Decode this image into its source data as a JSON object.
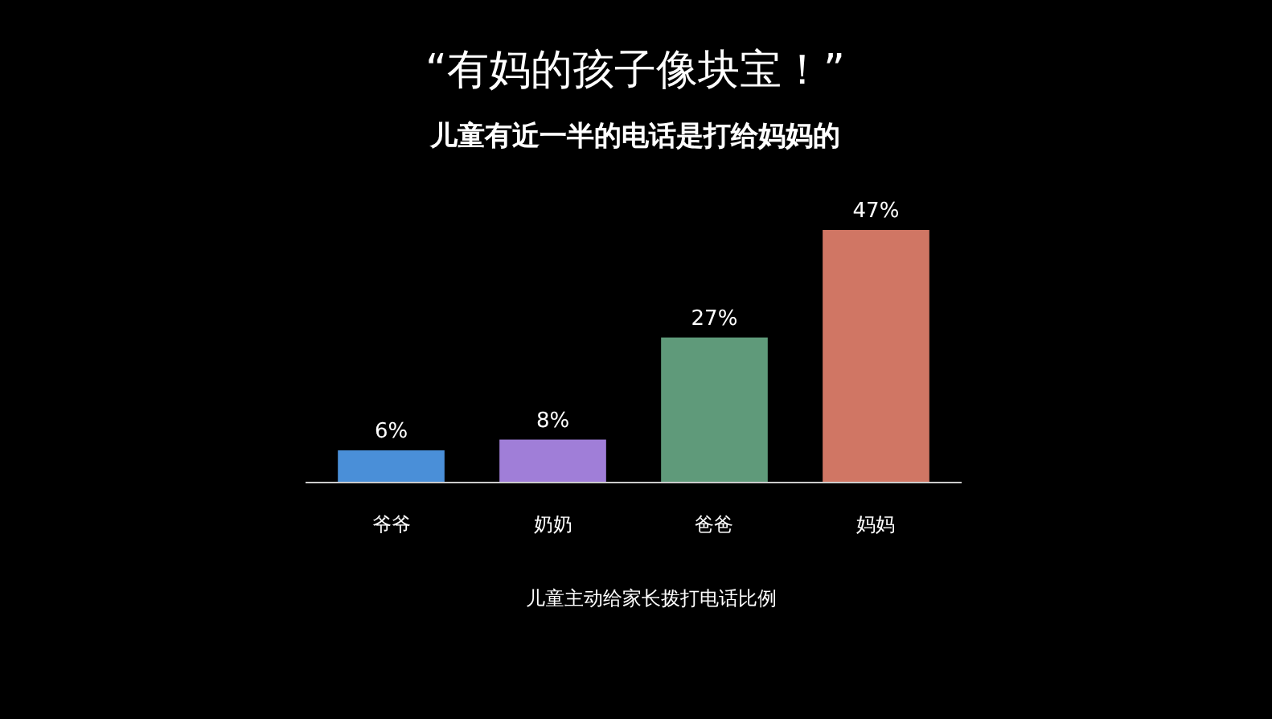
{
  "chart_data": {
    "type": "bar",
    "title": "“有妈的孩子像块宝！”",
    "subtitle": "儿童有近一半的电话是打给妈妈的",
    "xlabel": "儿童主动给家长拨打电话比例",
    "categories": [
      "爷爷",
      "奶奶",
      "爸爸",
      "妈妈"
    ],
    "values": [
      6,
      8,
      27,
      47
    ],
    "colors": [
      "#4a8fd8",
      "#a07ed8",
      "#5f9a7a",
      "#d07664"
    ],
    "value_labels": [
      "6%",
      "8%",
      "27%",
      "47%"
    ],
    "ylim": [
      0,
      47
    ]
  }
}
